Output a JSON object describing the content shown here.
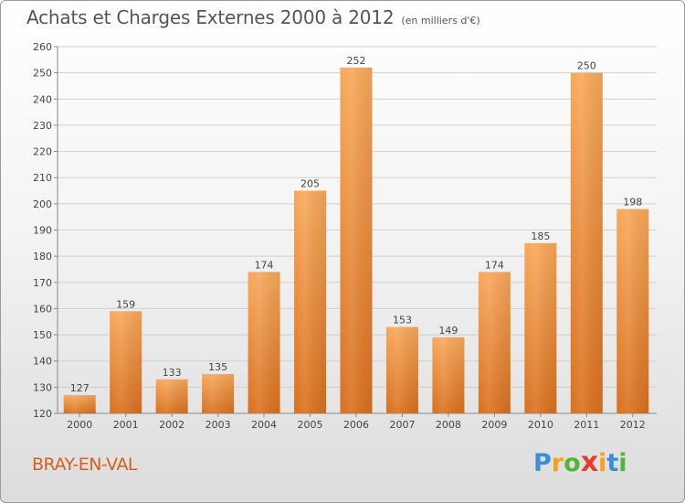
{
  "header": {
    "title": "Achats et Charges Externes 2000 à 2012",
    "unit_note": "(en milliers d'€)"
  },
  "footer": {
    "commune": "BRAY-EN-VAL",
    "logo": {
      "letters": [
        "P",
        "r",
        "o",
        "x",
        "i",
        "t",
        "i"
      ],
      "colors": [
        "#3a8fd6",
        "#f4a21a",
        "#56b33a",
        "#e63a2e",
        "#f4a21a",
        "#3a8fd6",
        "#56b33a"
      ]
    }
  },
  "chart_data": {
    "type": "bar",
    "title": "Achats et Charges Externes 2000 à 2012",
    "subtitle": "(en milliers d'€)",
    "categories": [
      "2000",
      "2001",
      "2002",
      "2003",
      "2004",
      "2005",
      "2006",
      "2007",
      "2008",
      "2009",
      "2010",
      "2011",
      "2012"
    ],
    "values": [
      127,
      159,
      133,
      135,
      174,
      205,
      252,
      153,
      149,
      174,
      185,
      250,
      198
    ],
    "ylim": [
      120,
      260
    ],
    "yticks": [
      120,
      130,
      140,
      150,
      160,
      170,
      180,
      190,
      200,
      210,
      220,
      230,
      240,
      250,
      260
    ],
    "grid": true,
    "bar_color": "#f0933a"
  }
}
